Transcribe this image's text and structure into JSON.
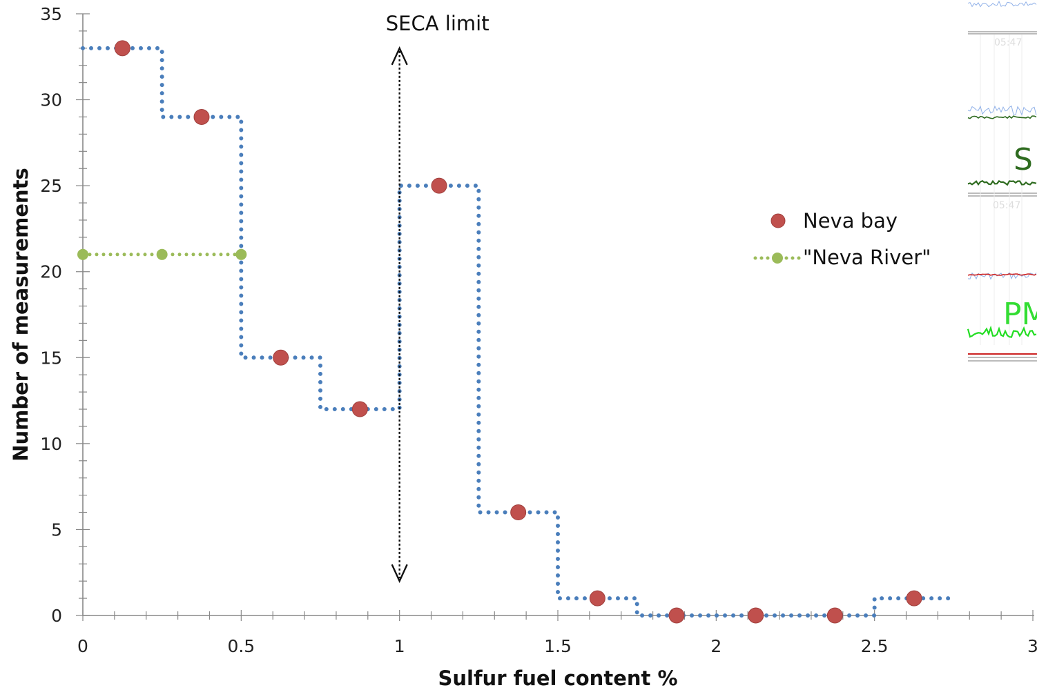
{
  "chart_data": {
    "type": "line",
    "xlabel": "Sulfur fuel content %",
    "ylabel": "Number of measurements",
    "xlim": [
      0,
      3
    ],
    "ylim": [
      0,
      35
    ],
    "x_ticks": [
      "0",
      "0.5",
      "1",
      "1.5",
      "2",
      "2.5",
      "3"
    ],
    "y_ticks": [
      "0",
      "5",
      "10",
      "15",
      "20",
      "25",
      "30",
      "35"
    ],
    "series": [
      {
        "name": "Neva bay",
        "marker": "circle",
        "color": "#c0504d",
        "step_line_color": "#4a7ebb",
        "x": [
          0.125,
          0.375,
          0.625,
          0.875,
          1.125,
          1.375,
          1.625,
          1.875,
          2.125,
          2.375,
          2.625
        ],
        "values": [
          33,
          29,
          15,
          12,
          25,
          6,
          1,
          0,
          0,
          0,
          1
        ],
        "bin_edges": [
          0,
          0.25,
          0.5,
          0.75,
          1.0,
          1.25,
          1.5,
          1.75,
          2.0,
          2.25,
          2.5,
          2.75
        ]
      },
      {
        "name": "\"Neva River\"",
        "marker": "circle",
        "color": "#9bbb59",
        "x": [
          0,
          0.25,
          0.5
        ],
        "values": [
          21,
          21,
          21
        ]
      }
    ],
    "annotations": [
      {
        "text": "SECA limit",
        "x": 1.0,
        "y_from": 2,
        "y_to": 33
      }
    ],
    "legend_position": "right"
  },
  "inset": {
    "timestamps": [
      "05:47",
      "05:47"
    ],
    "labels": [
      "S",
      "PM"
    ]
  }
}
